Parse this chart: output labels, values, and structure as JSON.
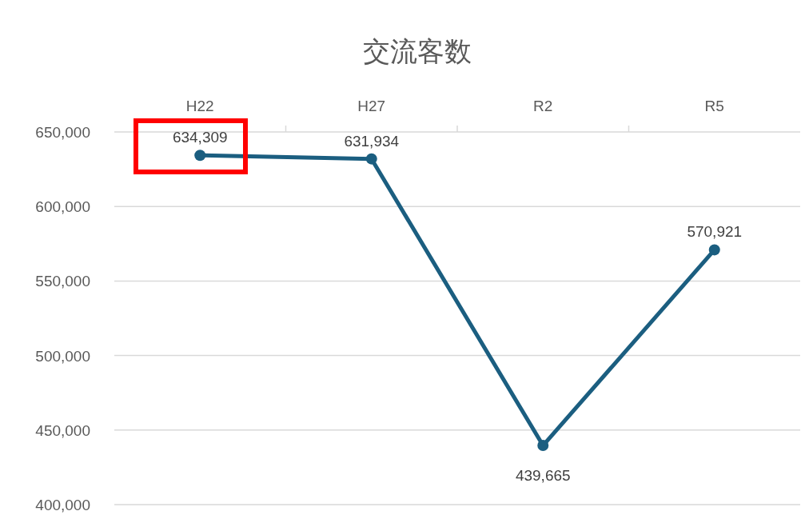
{
  "chart_data": {
    "type": "line",
    "title": "交流客数",
    "categories": [
      "H22",
      "H27",
      "R2",
      "R5"
    ],
    "series": [
      {
        "color": "#1b5e80",
        "values": [
          634309,
          631934,
          439665,
          570921
        ],
        "value_labels": [
          "634,309",
          "631,934",
          "439,665",
          "570,921"
        ]
      }
    ],
    "ylim": [
      400000,
      650000
    ],
    "yticks": [
      {
        "value": 400000,
        "label": "400,000"
      },
      {
        "value": 450000,
        "label": "450,000"
      },
      {
        "value": 500000,
        "label": "500,000"
      },
      {
        "value": 550000,
        "label": "550,000"
      },
      {
        "value": 600000,
        "label": "600,000"
      },
      {
        "value": 650000,
        "label": "650,000"
      }
    ],
    "grid": "y",
    "marker": "circle",
    "line_style": "solid"
  }
}
